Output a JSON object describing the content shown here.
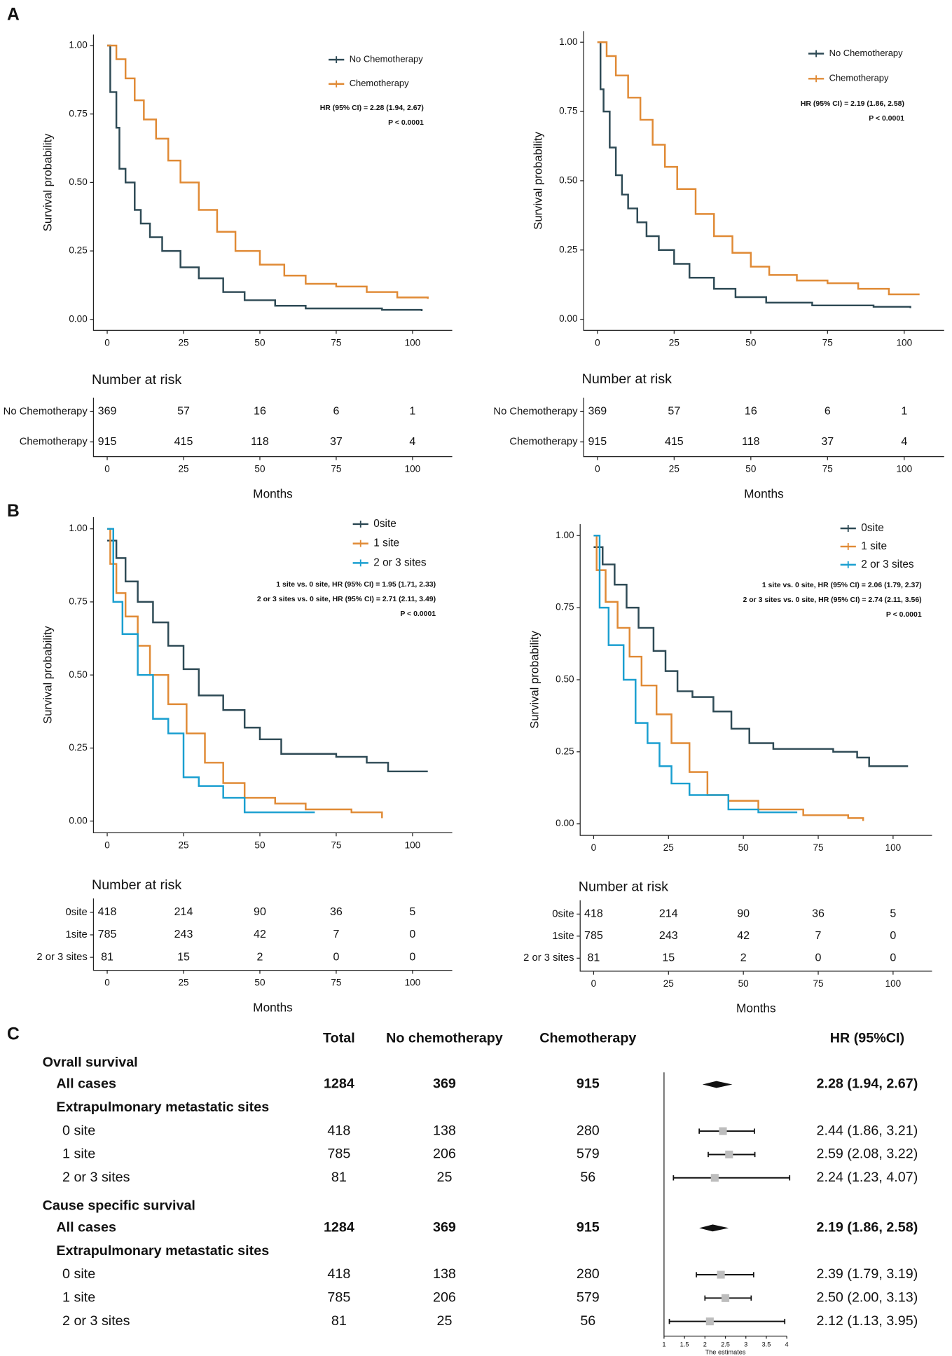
{
  "chart_data": [
    {
      "type": "line",
      "panel": "A",
      "ylabel": "Survival probability",
      "xlim": [
        -4.5,
        113
      ],
      "xticks": [
        0,
        25,
        50,
        75,
        100
      ],
      "ylim": [
        -0.04,
        1.04
      ],
      "yticks": [
        {
          "value": 0,
          "label": "0.00"
        },
        {
          "value": 0.25,
          "label": "0.25"
        },
        {
          "value": 0.5,
          "label": "0.50"
        },
        {
          "value": 0.75,
          "label": "0.75"
        },
        {
          "value": 1,
          "label": "1.00"
        }
      ],
      "series": [
        {
          "name": "No Chemotherapy",
          "color": "#2e4a55",
          "x": [
            0,
            1,
            3,
            4,
            6,
            9,
            11,
            14,
            18,
            24,
            30,
            38,
            45,
            55,
            65,
            90,
            103
          ],
          "values": [
            1,
            0.83,
            0.7,
            0.55,
            0.5,
            0.4,
            0.35,
            0.3,
            0.25,
            0.19,
            0.15,
            0.1,
            0.07,
            0.05,
            0.04,
            0.035,
            0.03
          ]
        },
        {
          "name": "Chemotherapy",
          "color": "#e08a35",
          "x": [
            0,
            3,
            6,
            9,
            12,
            16,
            20,
            24,
            30,
            36,
            42,
            50,
            58,
            65,
            75,
            85,
            95,
            105
          ],
          "values": [
            1,
            0.95,
            0.88,
            0.8,
            0.73,
            0.66,
            0.58,
            0.5,
            0.4,
            0.32,
            0.25,
            0.2,
            0.16,
            0.13,
            0.12,
            0.1,
            0.08,
            0.075
          ]
        }
      ],
      "annotations": [
        "HR (95% CI) = 2.28 (1.94, 2.67)",
        "P < 0.0001"
      ],
      "risk": {
        "title": "Number at risk",
        "xlabel": "Months",
        "rows": [
          {
            "name": "No Chemotherapy",
            "color": "#2e4a55",
            "counts": [
              369,
              57,
              16,
              6,
              1
            ]
          },
          {
            "name": "Chemotherapy",
            "color": "#e08a35",
            "counts": [
              915,
              415,
              118,
              37,
              4
            ]
          }
        ]
      }
    },
    {
      "type": "line",
      "ylabel": "Survival probability",
      "xlim": [
        -4.5,
        113
      ],
      "xticks": [
        0,
        25,
        50,
        75,
        100
      ],
      "ylim": [
        -0.04,
        1.04
      ],
      "yticks": [
        {
          "value": 0,
          "label": "0.00"
        },
        {
          "value": 0.25,
          "label": "0.25"
        },
        {
          "value": 0.5,
          "label": "0.50"
        },
        {
          "value": 0.75,
          "label": "0.75"
        },
        {
          "value": 1,
          "label": "1.00"
        }
      ],
      "series": [
        {
          "name": "No Chemotherapy",
          "color": "#2e4a55",
          "x": [
            0,
            1,
            2,
            4,
            6,
            8,
            10,
            13,
            16,
            20,
            25,
            30,
            38,
            45,
            55,
            70,
            90,
            102
          ],
          "values": [
            1,
            0.83,
            0.75,
            0.62,
            0.52,
            0.45,
            0.4,
            0.35,
            0.3,
            0.25,
            0.2,
            0.15,
            0.11,
            0.08,
            0.06,
            0.05,
            0.045,
            0.04
          ]
        },
        {
          "name": "Chemotherapy",
          "color": "#e08a35",
          "x": [
            0,
            3,
            6,
            10,
            14,
            18,
            22,
            26,
            32,
            38,
            44,
            50,
            56,
            65,
            75,
            85,
            95,
            105
          ],
          "values": [
            1,
            0.95,
            0.88,
            0.8,
            0.72,
            0.63,
            0.55,
            0.47,
            0.38,
            0.3,
            0.24,
            0.19,
            0.16,
            0.14,
            0.13,
            0.11,
            0.09,
            0.09
          ]
        }
      ],
      "annotations": [
        "HR (95% CI) = 2.19 (1.86, 2.58)",
        "P < 0.0001"
      ],
      "risk": {
        "title": "Number at risk",
        "xlabel": "Months",
        "rows": [
          {
            "name": "No Chemotherapy",
            "color": "#2e4a55",
            "counts": [
              369,
              57,
              16,
              6,
              1
            ]
          },
          {
            "name": "Chemotherapy",
            "color": "#e08a35",
            "counts": [
              915,
              415,
              118,
              37,
              4
            ]
          }
        ]
      }
    },
    {
      "type": "line",
      "panel": "B",
      "ylabel": "Survival probability",
      "xlim": [
        -4.5,
        113
      ],
      "xticks": [
        0,
        25,
        50,
        75,
        100
      ],
      "ylim": [
        -0.04,
        1.04
      ],
      "yticks": [
        {
          "value": 0,
          "label": "0.00"
        },
        {
          "value": 0.25,
          "label": "0.25"
        },
        {
          "value": 0.5,
          "label": "0.50"
        },
        {
          "value": 0.75,
          "label": "0.75"
        },
        {
          "value": 1,
          "label": "1.00"
        }
      ],
      "series": [
        {
          "name": "0site",
          "color": "#2e4a55",
          "x": [
            0,
            3,
            6,
            10,
            15,
            20,
            25,
            30,
            38,
            45,
            50,
            57,
            75,
            85,
            92,
            105
          ],
          "values": [
            0.96,
            0.9,
            0.82,
            0.75,
            0.68,
            0.6,
            0.52,
            0.43,
            0.38,
            0.32,
            0.28,
            0.23,
            0.22,
            0.2,
            0.17,
            0.17
          ]
        },
        {
          "name": "1 site",
          "color": "#e08a35",
          "x": [
            0,
            1,
            3,
            6,
            10,
            14,
            20,
            26,
            32,
            38,
            45,
            55,
            65,
            80,
            90
          ],
          "values": [
            1,
            0.88,
            0.78,
            0.7,
            0.6,
            0.5,
            0.4,
            0.3,
            0.2,
            0.13,
            0.08,
            0.06,
            0.04,
            0.03,
            0.01
          ]
        },
        {
          "name": "2 or 3 sites",
          "color": "#1a9fd0",
          "x": [
            0,
            2,
            5,
            10,
            15,
            20,
            25,
            30,
            38,
            45,
            68
          ],
          "values": [
            1,
            0.75,
            0.64,
            0.5,
            0.35,
            0.3,
            0.15,
            0.12,
            0.08,
            0.03,
            0.03
          ]
        }
      ],
      "annotations": [
        "1 site vs. 0 site, HR (95% CI) = 1.95 (1.71, 2.33)",
        "2 or 3 sites vs. 0 site, HR (95% CI) = 2.71 (2.11, 3.49)",
        "P < 0.0001"
      ],
      "risk": {
        "title": "Number at risk",
        "xlabel": "Months",
        "rows": [
          {
            "name": "0site",
            "color": "#2e4a55",
            "counts": [
              418,
              214,
              90,
              36,
              5
            ]
          },
          {
            "name": "1site",
            "color": "#e08a35",
            "counts": [
              785,
              243,
              42,
              7,
              0
            ]
          },
          {
            "name": "2 or 3 sites",
            "color": "#1a9fd0",
            "counts": [
              81,
              15,
              2,
              0,
              0
            ]
          }
        ]
      }
    },
    {
      "type": "line",
      "ylabel": "Survival probability",
      "xlim": [
        -4.5,
        113
      ],
      "xticks": [
        0,
        25,
        50,
        75,
        100
      ],
      "ylim": [
        -0.04,
        1.04
      ],
      "yticks": [
        {
          "value": 0,
          "label": "0.00"
        },
        {
          "value": 0.25,
          "label": "0.25"
        },
        {
          "value": 0.5,
          "label": "0.50"
        },
        {
          "value": 0.75,
          "label": "0.75"
        },
        {
          "value": 1,
          "label": "1.00"
        }
      ],
      "series": [
        {
          "name": "0site",
          "color": "#2e4a55",
          "x": [
            0,
            3,
            7,
            11,
            15,
            20,
            24,
            28,
            33,
            40,
            46,
            52,
            60,
            80,
            88,
            92,
            105
          ],
          "values": [
            0.96,
            0.9,
            0.83,
            0.75,
            0.68,
            0.6,
            0.53,
            0.46,
            0.44,
            0.39,
            0.33,
            0.28,
            0.26,
            0.25,
            0.23,
            0.2,
            0.2
          ]
        },
        {
          "name": "1 site",
          "color": "#e08a35",
          "x": [
            0,
            1,
            4,
            8,
            12,
            16,
            21,
            26,
            32,
            38,
            45,
            55,
            70,
            85,
            90
          ],
          "values": [
            1,
            0.88,
            0.77,
            0.68,
            0.58,
            0.48,
            0.38,
            0.28,
            0.18,
            0.1,
            0.08,
            0.05,
            0.03,
            0.02,
            0.01
          ]
        },
        {
          "name": "2 or 3 sites",
          "color": "#1a9fd0",
          "x": [
            0,
            2,
            5,
            10,
            14,
            18,
            22,
            26,
            32,
            45,
            55,
            68
          ],
          "values": [
            1,
            0.75,
            0.62,
            0.5,
            0.35,
            0.28,
            0.2,
            0.14,
            0.1,
            0.05,
            0.04,
            0.04
          ]
        }
      ],
      "annotations": [
        "1 site vs. 0 site, HR (95% CI) = 2.06 (1.79, 2.37)",
        "2 or 3 sites vs. 0 site, HR (95% CI) = 2.74 (2.11, 3.56)",
        "P < 0.0001"
      ],
      "risk": {
        "title": "Number at risk",
        "xlabel": "Months",
        "rows": [
          {
            "name": "0site",
            "color": "#2e4a55",
            "counts": [
              418,
              214,
              90,
              36,
              5
            ]
          },
          {
            "name": "1site",
            "color": "#e08a35",
            "counts": [
              785,
              243,
              42,
              7,
              0
            ]
          },
          {
            "name": "2 or 3 sites",
            "color": "#1a9fd0",
            "counts": [
              81,
              15,
              2,
              0,
              0
            ]
          }
        ]
      }
    },
    {
      "type": "forest",
      "panel": "C",
      "columns": [
        "Total",
        "No chemotherapy",
        "Chemotherapy",
        "HR (95%CI)"
      ],
      "xlim": [
        1,
        4
      ],
      "xticks": [
        1,
        1.5,
        2,
        2.5,
        3,
        3.5,
        4
      ],
      "xlabel": "The estimates",
      "groups": [
        {
          "title": "Ovrall survival",
          "all": {
            "label": "All cases",
            "total": 1284,
            "no_chemo": 369,
            "chemo": 915,
            "hr": 2.28,
            "lo": 1.94,
            "hi": 2.67,
            "hr_label": "2.28 (1.94, 2.67)"
          },
          "subtitle": "Extrapulmonary metastatic sites",
          "rows": [
            {
              "label": "0 site",
              "total": 418,
              "no_chemo": 138,
              "chemo": 280,
              "hr": 2.44,
              "lo": 1.86,
              "hi": 3.21,
              "hr_label": "2.44 (1.86, 3.21)"
            },
            {
              "label": "1 site",
              "total": 785,
              "no_chemo": 206,
              "chemo": 579,
              "hr": 2.59,
              "lo": 2.08,
              "hi": 3.22,
              "hr_label": "2.59 (2.08, 3.22)"
            },
            {
              "label": "2 or 3 sites",
              "total": 81,
              "no_chemo": 25,
              "chemo": 56,
              "hr": 2.24,
              "lo": 1.23,
              "hi": 4.07,
              "hr_label": "2.24 (1.23, 4.07)"
            }
          ]
        },
        {
          "title": "Cause specific survival",
          "all": {
            "label": "All cases",
            "total": 1284,
            "no_chemo": 369,
            "chemo": 915,
            "hr": 2.19,
            "lo": 1.86,
            "hi": 2.58,
            "hr_label": "2.19 (1.86, 2.58)"
          },
          "subtitle": "Extrapulmonary metastatic sites",
          "rows": [
            {
              "label": "0 site",
              "total": 418,
              "no_chemo": 138,
              "chemo": 280,
              "hr": 2.39,
              "lo": 1.79,
              "hi": 3.19,
              "hr_label": "2.39 (1.79, 3.19)"
            },
            {
              "label": "1 site",
              "total": 785,
              "no_chemo": 206,
              "chemo": 579,
              "hr": 2.5,
              "lo": 2,
              "hi": 3.13,
              "hr_label": "2.50 (2.00, 3.13)"
            },
            {
              "label": "2 or 3 sites",
              "total": 81,
              "no_chemo": 25,
              "chemo": 56,
              "hr": 2.12,
              "lo": 1.13,
              "hi": 3.95,
              "hr_label": "2.12 (1.13, 3.95)"
            }
          ]
        }
      ]
    }
  ]
}
